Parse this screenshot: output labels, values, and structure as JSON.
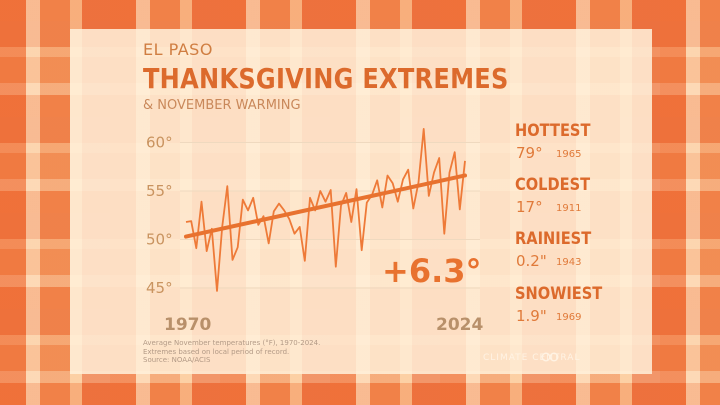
{
  "header": {
    "location": "EL PASO",
    "title": "THANKSGIVING EXTREMES",
    "subtitle": "& NOVEMBER WARMING"
  },
  "chart_data": {
    "type": "line",
    "ylim": [
      44,
      63
    ],
    "yticks": [
      "60°",
      "55°",
      "50°",
      "45°"
    ],
    "ytick_values": [
      60,
      55,
      50,
      45
    ],
    "x_start_label": "1970",
    "x_end_label": "2024",
    "years": [
      1970,
      1971,
      1972,
      1973,
      1974,
      1975,
      1976,
      1977,
      1978,
      1979,
      1980,
      1981,
      1982,
      1983,
      1984,
      1985,
      1986,
      1987,
      1988,
      1989,
      1990,
      1991,
      1992,
      1993,
      1994,
      1995,
      1996,
      1997,
      1998,
      1999,
      2000,
      2001,
      2002,
      2003,
      2004,
      2005,
      2006,
      2007,
      2008,
      2009,
      2010,
      2011,
      2012,
      2013,
      2014,
      2015,
      2016,
      2017,
      2018,
      2019,
      2020,
      2021,
      2022,
      2023,
      2024
    ],
    "series": [
      {
        "values": [
          51.8,
          51.9,
          49.1,
          53.9,
          48.8,
          51.1,
          44.7,
          51.3,
          55.5,
          47.9,
          49.2,
          54.1,
          53.0,
          54.3,
          51.5,
          52.4,
          49.6,
          52.9,
          53.7,
          53.0,
          52.1,
          50.6,
          51.3,
          47.8,
          54.3,
          53.0,
          55.0,
          53.9,
          55.1,
          47.2,
          53.5,
          54.8,
          51.8,
          55.2,
          48.9,
          53.8,
          54.6,
          56.1,
          53.3,
          56.6,
          55.8,
          53.9,
          56.2,
          57.2,
          53.2,
          55.9,
          61.4,
          54.5,
          56.9,
          58.4,
          50.6,
          56.9,
          59.0,
          53.1,
          58.1
        ]
      }
    ],
    "trend": {
      "start": 50.3,
      "end": 56.6
    },
    "trend_change": "+6.3°"
  },
  "extremes": [
    {
      "label": "HOTTEST",
      "value": "79°",
      "year": "1965"
    },
    {
      "label": "COLDEST",
      "value": "17°",
      "year": "1911"
    },
    {
      "label": "RAINIEST",
      "value": "0.2\"",
      "year": "1943"
    },
    {
      "label": "SNOWIEST",
      "value": "1.9\"",
      "year": "1969"
    }
  ],
  "footnote": [
    "Average November temperatures (°F), 1970-2024.",
    "Extremes based on local period of record.",
    "Source: NOAA/ACIS"
  ],
  "brand": "CLIMATE CENTRAL",
  "colors": {
    "accent": "#e8722f",
    "title": "#dc6a2c",
    "line": "#ee7a38",
    "tick": "#c9935f"
  }
}
